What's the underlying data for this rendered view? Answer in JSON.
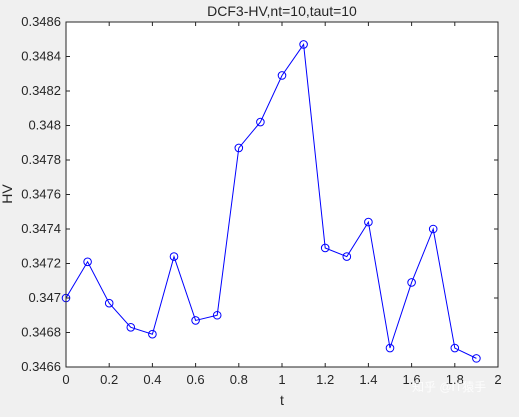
{
  "chart_data": {
    "type": "line",
    "title": "DCF3-HV,nt=10,taut=10",
    "xlabel": "t",
    "ylabel": "HV",
    "xlim": [
      0,
      2
    ],
    "ylim": [
      0.3466,
      0.3486
    ],
    "x_ticks": [
      0,
      0.2,
      0.4,
      0.6,
      0.8,
      1,
      1.2,
      1.4,
      1.6,
      1.8,
      2
    ],
    "x_tick_labels": [
      "0",
      "0.2",
      "0.4",
      "0.6",
      "0.8",
      "1",
      "1.2",
      "1.4",
      "1.6",
      "1.8",
      "2"
    ],
    "y_ticks": [
      0.3466,
      0.3468,
      0.347,
      0.3472,
      0.3474,
      0.3476,
      0.3478,
      0.348,
      0.3482,
      0.3484,
      0.3486
    ],
    "y_tick_labels": [
      "0.3466",
      "0.3468",
      "0.347",
      "0.3472",
      "0.3474",
      "0.3476",
      "0.3478",
      "0.348",
      "0.3482",
      "0.3484",
      "0.3486"
    ],
    "grid": false,
    "marker": "circle",
    "series": [
      {
        "color": "#0000ff",
        "x": [
          0,
          0.1,
          0.2,
          0.3,
          0.4,
          0.5,
          0.6,
          0.7,
          0.8,
          0.9,
          1.0,
          1.1,
          1.2,
          1.3,
          1.4,
          1.5,
          1.6,
          1.7,
          1.8,
          1.9
        ],
        "y": [
          0.347,
          0.34721,
          0.34697,
          0.34683,
          0.34679,
          0.34724,
          0.34687,
          0.3469,
          0.34787,
          0.34802,
          0.34829,
          0.34847,
          0.34729,
          0.34724,
          0.34744,
          0.34671,
          0.34709,
          0.3474,
          0.34671,
          0.34665
        ]
      }
    ]
  },
  "watermark": "知乎 @IT猿手"
}
